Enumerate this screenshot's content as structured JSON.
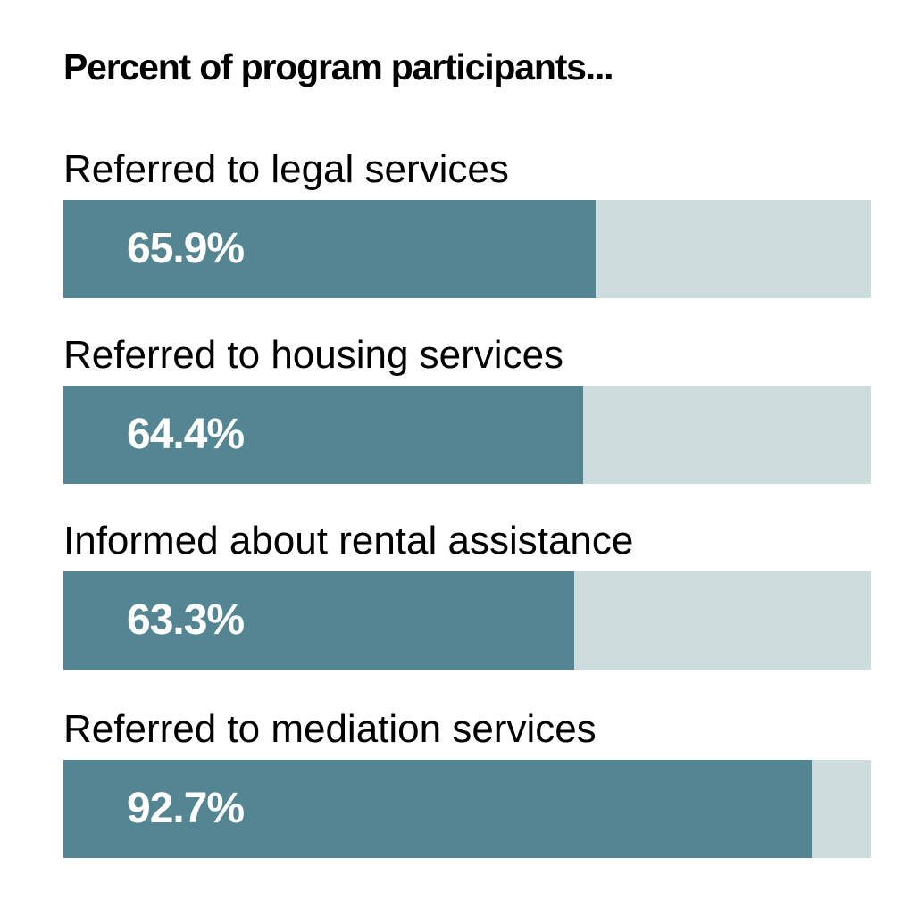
{
  "chart_data": {
    "type": "bar",
    "orientation": "horizontal",
    "title": "Percent of program participants...",
    "categories": [
      "Referred to legal services",
      "Referred to housing services",
      "Informed about rental assistance",
      "Referred to mediation services"
    ],
    "values": [
      65.9,
      64.4,
      63.3,
      92.7
    ],
    "value_labels": [
      "65.9%",
      "64.4%",
      "63.3%",
      "92.7%"
    ],
    "xlim": [
      0,
      100
    ],
    "grid": false,
    "colors": {
      "fill": "#538593",
      "track": "#cddcdc"
    }
  }
}
